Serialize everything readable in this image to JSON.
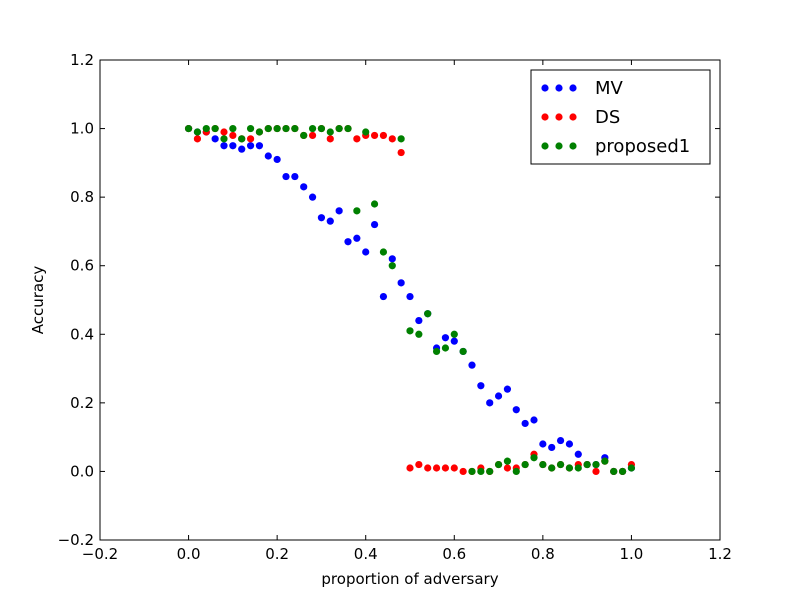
{
  "chart_data": {
    "type": "scatter",
    "title": "",
    "xlabel": "proportion of adversary",
    "ylabel": "Accuracy",
    "xlim": [
      -0.2,
      1.2
    ],
    "ylim": [
      -0.2,
      1.2
    ],
    "xticks": [
      -0.2,
      0.0,
      0.2,
      0.4,
      0.6,
      0.8,
      1.0,
      1.2
    ],
    "yticks": [
      -0.2,
      0.0,
      0.2,
      0.4,
      0.6,
      0.8,
      1.0,
      1.2
    ],
    "xtick_labels": [
      "−0.2",
      "0.0",
      "0.2",
      "0.4",
      "0.6",
      "0.8",
      "1.0",
      "1.2"
    ],
    "ytick_labels": [
      "−0.2",
      "0.0",
      "0.2",
      "0.4",
      "0.6",
      "0.8",
      "1.0",
      "1.2"
    ],
    "grid": false,
    "legend_position": "top-right",
    "series": [
      {
        "name": "MV",
        "color": "#0000ff",
        "points": [
          [
            0.0,
            1.0
          ],
          [
            0.02,
            0.99
          ],
          [
            0.04,
            0.99
          ],
          [
            0.06,
            0.97
          ],
          [
            0.08,
            0.95
          ],
          [
            0.1,
            0.95
          ],
          [
            0.12,
            0.94
          ],
          [
            0.14,
            0.95
          ],
          [
            0.16,
            0.95
          ],
          [
            0.18,
            0.92
          ],
          [
            0.2,
            0.91
          ],
          [
            0.22,
            0.86
          ],
          [
            0.24,
            0.86
          ],
          [
            0.26,
            0.83
          ],
          [
            0.28,
            0.8
          ],
          [
            0.3,
            0.74
          ],
          [
            0.32,
            0.73
          ],
          [
            0.34,
            0.76
          ],
          [
            0.36,
            0.67
          ],
          [
            0.38,
            0.68
          ],
          [
            0.4,
            0.64
          ],
          [
            0.42,
            0.72
          ],
          [
            0.44,
            0.51
          ],
          [
            0.46,
            0.62
          ],
          [
            0.48,
            0.55
          ],
          [
            0.5,
            0.51
          ],
          [
            0.52,
            0.44
          ],
          [
            0.54,
            0.46
          ],
          [
            0.56,
            0.36
          ],
          [
            0.58,
            0.39
          ],
          [
            0.6,
            0.38
          ],
          [
            0.62,
            0.35
          ],
          [
            0.64,
            0.31
          ],
          [
            0.66,
            0.25
          ],
          [
            0.68,
            0.2
          ],
          [
            0.7,
            0.22
          ],
          [
            0.72,
            0.24
          ],
          [
            0.74,
            0.18
          ],
          [
            0.76,
            0.14
          ],
          [
            0.78,
            0.15
          ],
          [
            0.8,
            0.08
          ],
          [
            0.82,
            0.07
          ],
          [
            0.84,
            0.09
          ],
          [
            0.86,
            0.08
          ],
          [
            0.88,
            0.05
          ],
          [
            0.9,
            0.02
          ],
          [
            0.92,
            0.02
          ],
          [
            0.94,
            0.04
          ],
          [
            0.96,
            0.0
          ],
          [
            0.98,
            0.0
          ],
          [
            1.0,
            0.01
          ]
        ]
      },
      {
        "name": "DS",
        "color": "#ff0000",
        "points": [
          [
            0.0,
            1.0
          ],
          [
            0.02,
            0.97
          ],
          [
            0.04,
            0.99
          ],
          [
            0.06,
            1.0
          ],
          [
            0.08,
            0.99
          ],
          [
            0.1,
            0.98
          ],
          [
            0.12,
            0.97
          ],
          [
            0.14,
            0.97
          ],
          [
            0.16,
            0.99
          ],
          [
            0.18,
            1.0
          ],
          [
            0.2,
            1.0
          ],
          [
            0.22,
            1.0
          ],
          [
            0.24,
            1.0
          ],
          [
            0.26,
            0.98
          ],
          [
            0.28,
            0.98
          ],
          [
            0.3,
            1.0
          ],
          [
            0.32,
            0.97
          ],
          [
            0.34,
            1.0
          ],
          [
            0.36,
            1.0
          ],
          [
            0.38,
            0.97
          ],
          [
            0.4,
            0.98
          ],
          [
            0.42,
            0.98
          ],
          [
            0.44,
            0.98
          ],
          [
            0.46,
            0.97
          ],
          [
            0.48,
            0.93
          ],
          [
            0.5,
            0.01
          ],
          [
            0.52,
            0.02
          ],
          [
            0.54,
            0.01
          ],
          [
            0.56,
            0.01
          ],
          [
            0.58,
            0.01
          ],
          [
            0.6,
            0.01
          ],
          [
            0.62,
            0.0
          ],
          [
            0.64,
            0.0
          ],
          [
            0.66,
            0.01
          ],
          [
            0.68,
            0.0
          ],
          [
            0.7,
            0.02
          ],
          [
            0.72,
            0.01
          ],
          [
            0.74,
            0.01
          ],
          [
            0.76,
            0.02
          ],
          [
            0.78,
            0.05
          ],
          [
            0.8,
            0.02
          ],
          [
            0.82,
            0.01
          ],
          [
            0.84,
            0.02
          ],
          [
            0.86,
            0.01
          ],
          [
            0.88,
            0.02
          ],
          [
            0.9,
            0.02
          ],
          [
            0.92,
            0.0
          ],
          [
            0.94,
            0.03
          ],
          [
            0.96,
            0.0
          ],
          [
            0.98,
            0.0
          ],
          [
            1.0,
            0.02
          ]
        ]
      },
      {
        "name": "proposed1",
        "color": "#008000",
        "points": [
          [
            0.0,
            1.0
          ],
          [
            0.02,
            0.99
          ],
          [
            0.04,
            1.0
          ],
          [
            0.06,
            1.0
          ],
          [
            0.08,
            0.97
          ],
          [
            0.1,
            1.0
          ],
          [
            0.12,
            0.97
          ],
          [
            0.14,
            1.0
          ],
          [
            0.16,
            0.99
          ],
          [
            0.18,
            1.0
          ],
          [
            0.2,
            1.0
          ],
          [
            0.22,
            1.0
          ],
          [
            0.24,
            1.0
          ],
          [
            0.26,
            0.98
          ],
          [
            0.28,
            1.0
          ],
          [
            0.3,
            1.0
          ],
          [
            0.32,
            0.99
          ],
          [
            0.34,
            1.0
          ],
          [
            0.36,
            1.0
          ],
          [
            0.38,
            0.76
          ],
          [
            0.4,
            0.99
          ],
          [
            0.42,
            0.78
          ],
          [
            0.44,
            0.64
          ],
          [
            0.46,
            0.6
          ],
          [
            0.48,
            0.97
          ],
          [
            0.5,
            0.41
          ],
          [
            0.52,
            0.4
          ],
          [
            0.54,
            0.46
          ],
          [
            0.56,
            0.35
          ],
          [
            0.58,
            0.36
          ],
          [
            0.6,
            0.4
          ],
          [
            0.62,
            0.35
          ],
          [
            0.64,
            0.0
          ],
          [
            0.66,
            0.0
          ],
          [
            0.68,
            0.0
          ],
          [
            0.7,
            0.02
          ],
          [
            0.72,
            0.03
          ],
          [
            0.74,
            0.0
          ],
          [
            0.76,
            0.02
          ],
          [
            0.78,
            0.04
          ],
          [
            0.8,
            0.02
          ],
          [
            0.82,
            0.01
          ],
          [
            0.84,
            0.02
          ],
          [
            0.86,
            0.01
          ],
          [
            0.88,
            0.01
          ],
          [
            0.9,
            0.02
          ],
          [
            0.92,
            0.02
          ],
          [
            0.94,
            0.03
          ],
          [
            0.96,
            0.0
          ],
          [
            0.98,
            0.0
          ],
          [
            1.0,
            0.01
          ]
        ]
      }
    ]
  }
}
